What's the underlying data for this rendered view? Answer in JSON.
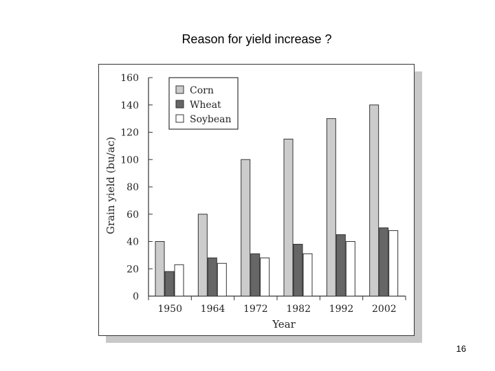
{
  "slide": {
    "title": "Reason for yield increase ?",
    "number": "16"
  },
  "chart_data": {
    "type": "bar",
    "title": "",
    "xlabel": "Year",
    "ylabel": "Grain yield (bu/ac)",
    "categories": [
      "1950",
      "1964",
      "1972",
      "1982",
      "1992",
      "2002"
    ],
    "ylim": [
      0,
      160
    ],
    "yticks": [
      0,
      20,
      40,
      60,
      80,
      100,
      120,
      140,
      160
    ],
    "grid": false,
    "legend_position": "top-left",
    "series": [
      {
        "name": "Corn",
        "color": "#cccccc",
        "values": [
          40,
          60,
          100,
          115,
          130,
          140
        ]
      },
      {
        "name": "Wheat",
        "color": "#666666",
        "values": [
          18,
          28,
          31,
          38,
          45,
          50
        ]
      },
      {
        "name": "Soybean",
        "color": "#ffffff",
        "values": [
          23,
          24,
          28,
          31,
          40,
          48
        ]
      }
    ]
  }
}
